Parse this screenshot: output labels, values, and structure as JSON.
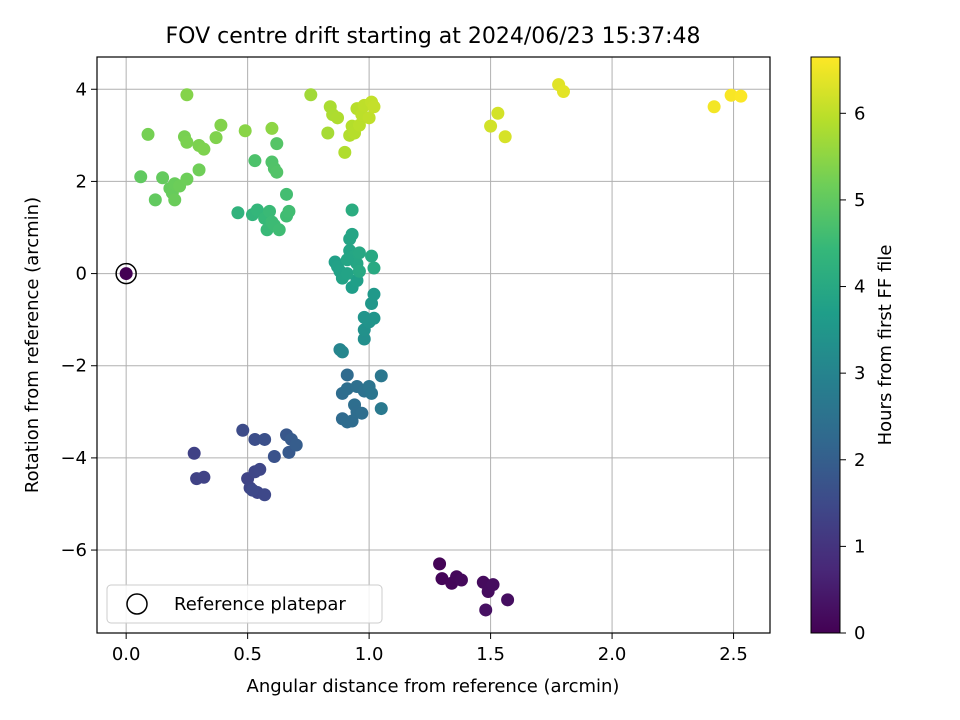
{
  "chart_data": {
    "type": "scatter",
    "title": "FOV centre drift starting at 2024/06/23 15:37:48",
    "xlabel": "Angular distance from reference (arcmin)",
    "ylabel": "Rotation from reference (arcmin)",
    "xlim": [
      -0.12,
      2.65
    ],
    "ylim": [
      -7.8,
      4.7
    ],
    "xticks": [
      0.0,
      0.5,
      1.0,
      1.5,
      2.0,
      2.5
    ],
    "xtick_labels": [
      "0.0",
      "0.5",
      "1.0",
      "1.5",
      "2.0",
      "2.5"
    ],
    "yticks": [
      -6,
      -4,
      -2,
      0,
      2,
      4
    ],
    "ytick_labels": [
      "−6",
      "−4",
      "−2",
      "0",
      "2",
      "4"
    ],
    "grid": true,
    "colormap": "viridis",
    "colorbar": {
      "label": "Hours from first FF file",
      "range": [
        0,
        6.65
      ],
      "ticks": [
        0,
        1,
        2,
        3,
        4,
        5,
        6
      ],
      "tick_labels": [
        "0",
        "1",
        "2",
        "3",
        "4",
        "5",
        "6"
      ]
    },
    "legend": {
      "placement": "lower-left",
      "entries": [
        "Reference platepar"
      ]
    },
    "reference_point": {
      "x": 0.0,
      "y": 0.0,
      "hours": 0.0
    },
    "points": [
      {
        "x": 1.29,
        "y": -6.3,
        "h": 0.05
      },
      {
        "x": 1.3,
        "y": -6.62,
        "h": 0.08
      },
      {
        "x": 1.34,
        "y": -6.72,
        "h": 0.1
      },
      {
        "x": 1.36,
        "y": -6.58,
        "h": 0.12
      },
      {
        "x": 1.38,
        "y": -6.65,
        "h": 0.15
      },
      {
        "x": 1.47,
        "y": -6.7,
        "h": 0.18
      },
      {
        "x": 1.49,
        "y": -6.9,
        "h": 0.2
      },
      {
        "x": 1.51,
        "y": -6.75,
        "h": 0.22
      },
      {
        "x": 1.57,
        "y": -7.08,
        "h": 0.25
      },
      {
        "x": 1.48,
        "y": -7.3,
        "h": 0.28
      },
      {
        "x": 0.28,
        "y": -3.9,
        "h": 1.3
      },
      {
        "x": 0.29,
        "y": -4.45,
        "h": 1.32
      },
      {
        "x": 0.32,
        "y": -4.42,
        "h": 1.34
      },
      {
        "x": 0.5,
        "y": -4.45,
        "h": 1.36
      },
      {
        "x": 0.51,
        "y": -4.65,
        "h": 1.38
      },
      {
        "x": 0.53,
        "y": -4.3,
        "h": 1.4
      },
      {
        "x": 0.54,
        "y": -4.75,
        "h": 1.42
      },
      {
        "x": 0.55,
        "y": -4.25,
        "h": 1.44
      },
      {
        "x": 0.57,
        "y": -4.8,
        "h": 1.46
      },
      {
        "x": 0.52,
        "y": -4.7,
        "h": 1.48
      },
      {
        "x": 0.48,
        "y": -3.4,
        "h": 1.55
      },
      {
        "x": 0.53,
        "y": -3.6,
        "h": 1.6
      },
      {
        "x": 0.57,
        "y": -3.6,
        "h": 1.65
      },
      {
        "x": 0.61,
        "y": -3.97,
        "h": 1.7
      },
      {
        "x": 0.66,
        "y": -3.5,
        "h": 1.8
      },
      {
        "x": 0.67,
        "y": -3.88,
        "h": 1.85
      },
      {
        "x": 0.68,
        "y": -3.6,
        "h": 1.9
      },
      {
        "x": 0.7,
        "y": -3.72,
        "h": 1.95
      },
      {
        "x": 0.91,
        "y": -2.2,
        "h": 2.3
      },
      {
        "x": 0.89,
        "y": -2.6,
        "h": 2.35
      },
      {
        "x": 0.91,
        "y": -2.5,
        "h": 2.4
      },
      {
        "x": 0.95,
        "y": -2.45,
        "h": 2.45
      },
      {
        "x": 0.98,
        "y": -2.55,
        "h": 2.5
      },
      {
        "x": 1.0,
        "y": -2.45,
        "h": 2.55
      },
      {
        "x": 1.01,
        "y": -2.6,
        "h": 2.6
      },
      {
        "x": 1.05,
        "y": -2.22,
        "h": 2.65
      },
      {
        "x": 1.05,
        "y": -2.93,
        "h": 2.7
      },
      {
        "x": 0.94,
        "y": -2.85,
        "h": 2.4
      },
      {
        "x": 0.89,
        "y": -3.15,
        "h": 2.3
      },
      {
        "x": 0.91,
        "y": -3.22,
        "h": 2.32
      },
      {
        "x": 0.93,
        "y": -3.2,
        "h": 2.34
      },
      {
        "x": 0.95,
        "y": -3.0,
        "h": 2.36
      },
      {
        "x": 0.97,
        "y": -3.03,
        "h": 2.38
      },
      {
        "x": 0.88,
        "y": -1.65,
        "h": 3.0
      },
      {
        "x": 0.89,
        "y": -1.7,
        "h": 3.05
      },
      {
        "x": 0.98,
        "y": -1.42,
        "h": 3.3
      },
      {
        "x": 0.98,
        "y": -1.22,
        "h": 3.35
      },
      {
        "x": 1.0,
        "y": -1.05,
        "h": 3.4
      },
      {
        "x": 1.02,
        "y": -0.97,
        "h": 3.45
      },
      {
        "x": 1.01,
        "y": -0.65,
        "h": 3.5
      },
      {
        "x": 1.02,
        "y": -0.45,
        "h": 3.55
      },
      {
        "x": 0.98,
        "y": -0.95,
        "h": 3.42
      },
      {
        "x": 0.93,
        "y": -0.3,
        "h": 3.7
      },
      {
        "x": 0.95,
        "y": -0.15,
        "h": 3.72
      },
      {
        "x": 0.86,
        "y": 0.25,
        "h": 3.75
      },
      {
        "x": 0.87,
        "y": 0.15,
        "h": 3.78
      },
      {
        "x": 0.88,
        "y": 0.05,
        "h": 3.8
      },
      {
        "x": 0.89,
        "y": -0.1,
        "h": 3.82
      },
      {
        "x": 0.91,
        "y": 0.0,
        "h": 3.84
      },
      {
        "x": 0.92,
        "y": 0.5,
        "h": 3.86
      },
      {
        "x": 0.92,
        "y": 0.75,
        "h": 3.88
      },
      {
        "x": 0.93,
        "y": 0.85,
        "h": 3.9
      },
      {
        "x": 0.94,
        "y": 0.38,
        "h": 3.92
      },
      {
        "x": 0.95,
        "y": 0.22,
        "h": 3.94
      },
      {
        "x": 0.96,
        "y": 0.45,
        "h": 3.96
      },
      {
        "x": 0.96,
        "y": 0.05,
        "h": 3.98
      },
      {
        "x": 1.01,
        "y": 0.38,
        "h": 4.0
      },
      {
        "x": 1.02,
        "y": 0.12,
        "h": 4.02
      },
      {
        "x": 0.91,
        "y": 0.3,
        "h": 3.9
      },
      {
        "x": 0.93,
        "y": 1.38,
        "h": 4.1
      },
      {
        "x": 0.46,
        "y": 1.32,
        "h": 4.3
      },
      {
        "x": 0.52,
        "y": 1.28,
        "h": 4.35
      },
      {
        "x": 0.54,
        "y": 1.38,
        "h": 4.4
      },
      {
        "x": 0.57,
        "y": 1.2,
        "h": 4.45
      },
      {
        "x": 0.58,
        "y": 0.95,
        "h": 4.48
      },
      {
        "x": 0.59,
        "y": 1.35,
        "h": 4.5
      },
      {
        "x": 0.6,
        "y": 1.12,
        "h": 4.52
      },
      {
        "x": 0.61,
        "y": 1.05,
        "h": 4.54
      },
      {
        "x": 0.63,
        "y": 0.95,
        "h": 4.56
      },
      {
        "x": 0.66,
        "y": 1.25,
        "h": 4.58
      },
      {
        "x": 0.67,
        "y": 1.35,
        "h": 4.6
      },
      {
        "x": 0.66,
        "y": 1.72,
        "h": 4.62
      },
      {
        "x": 0.53,
        "y": 2.45,
        "h": 4.75
      },
      {
        "x": 0.6,
        "y": 2.42,
        "h": 4.78
      },
      {
        "x": 0.61,
        "y": 2.28,
        "h": 4.8
      },
      {
        "x": 0.62,
        "y": 2.2,
        "h": 4.82
      },
      {
        "x": 0.62,
        "y": 2.82,
        "h": 4.85
      },
      {
        "x": 0.06,
        "y": 2.1,
        "h": 5.0
      },
      {
        "x": 0.12,
        "y": 1.6,
        "h": 5.02
      },
      {
        "x": 0.15,
        "y": 2.08,
        "h": 5.04
      },
      {
        "x": 0.18,
        "y": 1.85,
        "h": 5.06
      },
      {
        "x": 0.19,
        "y": 1.75,
        "h": 5.08
      },
      {
        "x": 0.2,
        "y": 1.95,
        "h": 5.1
      },
      {
        "x": 0.2,
        "y": 1.6,
        "h": 5.12
      },
      {
        "x": 0.22,
        "y": 1.9,
        "h": 5.14
      },
      {
        "x": 0.25,
        "y": 2.05,
        "h": 5.16
      },
      {
        "x": 0.3,
        "y": 2.25,
        "h": 5.18
      },
      {
        "x": 0.09,
        "y": 3.02,
        "h": 5.25
      },
      {
        "x": 0.24,
        "y": 2.97,
        "h": 5.28
      },
      {
        "x": 0.25,
        "y": 2.85,
        "h": 5.3
      },
      {
        "x": 0.3,
        "y": 2.78,
        "h": 5.32
      },
      {
        "x": 0.32,
        "y": 2.7,
        "h": 5.34
      },
      {
        "x": 0.37,
        "y": 2.95,
        "h": 5.36
      },
      {
        "x": 0.39,
        "y": 3.22,
        "h": 5.38
      },
      {
        "x": 0.25,
        "y": 3.88,
        "h": 5.4
      },
      {
        "x": 0.49,
        "y": 3.1,
        "h": 5.45
      },
      {
        "x": 0.6,
        "y": 3.15,
        "h": 5.5
      },
      {
        "x": 0.76,
        "y": 3.88,
        "h": 5.7
      },
      {
        "x": 0.83,
        "y": 3.05,
        "h": 5.75
      },
      {
        "x": 0.84,
        "y": 3.62,
        "h": 5.8
      },
      {
        "x": 0.85,
        "y": 3.45,
        "h": 5.82
      },
      {
        "x": 0.87,
        "y": 3.38,
        "h": 5.84
      },
      {
        "x": 0.9,
        "y": 2.63,
        "h": 5.86
      },
      {
        "x": 0.92,
        "y": 3.0,
        "h": 5.88
      },
      {
        "x": 0.93,
        "y": 3.2,
        "h": 5.9
      },
      {
        "x": 0.94,
        "y": 3.05,
        "h": 5.92
      },
      {
        "x": 0.95,
        "y": 3.58,
        "h": 5.94
      },
      {
        "x": 0.96,
        "y": 3.22,
        "h": 5.96
      },
      {
        "x": 0.97,
        "y": 3.45,
        "h": 5.98
      },
      {
        "x": 0.98,
        "y": 3.65,
        "h": 6.0
      },
      {
        "x": 1.0,
        "y": 3.38,
        "h": 6.02
      },
      {
        "x": 1.01,
        "y": 3.72,
        "h": 6.04
      },
      {
        "x": 1.02,
        "y": 3.62,
        "h": 6.06
      },
      {
        "x": 1.5,
        "y": 3.2,
        "h": 6.2
      },
      {
        "x": 1.53,
        "y": 3.48,
        "h": 6.22
      },
      {
        "x": 1.56,
        "y": 2.97,
        "h": 6.25
      },
      {
        "x": 1.78,
        "y": 4.1,
        "h": 6.35
      },
      {
        "x": 1.8,
        "y": 3.95,
        "h": 6.38
      },
      {
        "x": 2.42,
        "y": 3.62,
        "h": 6.55
      },
      {
        "x": 2.49,
        "y": 3.87,
        "h": 6.6
      },
      {
        "x": 2.53,
        "y": 3.85,
        "h": 6.63
      }
    ]
  }
}
